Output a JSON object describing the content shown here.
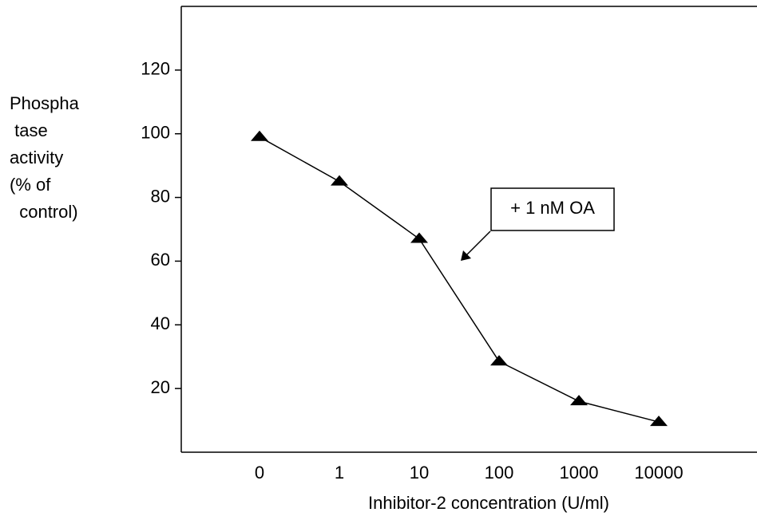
{
  "chart_data": {
    "type": "line",
    "y_label": [
      "Phospha",
      " tase",
      "activity",
      "(% of",
      "  control)"
    ],
    "x_label": "Inhibitor-2 concentration (U/ml)",
    "annotation": "+ 1 nM OA",
    "categories": [
      "0",
      "1",
      "10",
      "100",
      "1000",
      "10000"
    ],
    "series": [
      {
        "color": "#000000",
        "marker": "triangle",
        "values": [
          99,
          85,
          67,
          28.5,
          16,
          9.5
        ]
      }
    ],
    "ylim": [
      0,
      140
    ],
    "yticks": [
      20,
      40,
      60,
      80,
      100,
      120
    ]
  }
}
